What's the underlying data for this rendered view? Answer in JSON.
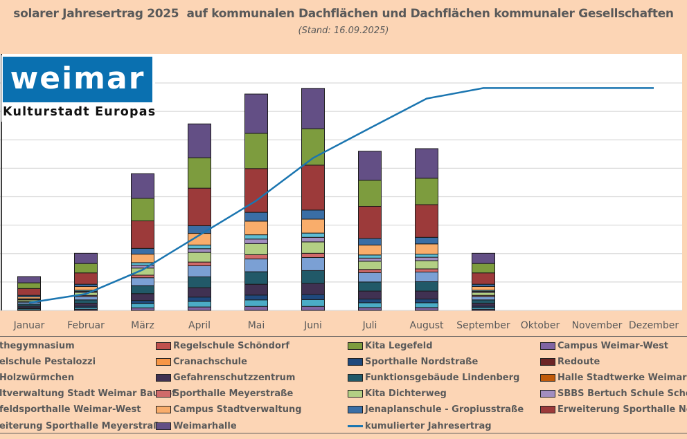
{
  "chart_data": {
    "type": "bar",
    "stacked": true,
    "title": "solarer Jahresertrag 2025  auf kommunalen Dachflächen und Dachflächen kommunaler Gesellschaften",
    "subtitle": "(Stand: 16.09.2025)",
    "categories": [
      "Januar",
      "Februar",
      "März",
      "April",
      "Mai",
      "Juni",
      "Juli",
      "August",
      "September",
      "Oktober",
      "November",
      "Dezember"
    ],
    "ylim": [
      0,
      8
    ],
    "grid": true,
    "legend_position": "bottom",
    "series": [
      {
        "name": "Campus Weimar-West",
        "legend_text": "Campus Weimar-West",
        "color": "#8064a2",
        "values": [
          0.02,
          0.04,
          0.09,
          0.12,
          0.14,
          0.14,
          0.1,
          0.1,
          0.04,
          0,
          0,
          0
        ]
      },
      {
        "name": "Holzwürmchen",
        "legend_text": "Holzwürmchen",
        "color": "#4bacc6",
        "values": [
          0.04,
          0.06,
          0.15,
          0.2,
          0.23,
          0.24,
          0.17,
          0.17,
          0.06,
          0,
          0,
          0
        ]
      },
      {
        "name": "Sporthalle Nordstraße",
        "legend_text": "Sporthalle Nordstraße",
        "color": "#1f497d",
        "values": [
          0.03,
          0.05,
          0.11,
          0.15,
          0.17,
          0.18,
          0.13,
          0.13,
          0.05,
          0,
          0,
          0
        ]
      },
      {
        "name": "Gefahrenschutzzentrum",
        "legend_text": "Gefahrenschutzzentrum",
        "color": "#403152",
        "values": [
          0.06,
          0.1,
          0.24,
          0.33,
          0.38,
          0.39,
          0.28,
          0.28,
          0.1,
          0,
          0,
          0
        ]
      },
      {
        "name": "Funktionsgebäude Lindenberg",
        "legend_text": "Funktionsgebäude Lindenberg",
        "color": "#215968",
        "values": [
          0.07,
          0.12,
          0.28,
          0.38,
          0.44,
          0.45,
          0.32,
          0.33,
          0.12,
          0,
          0,
          0
        ]
      },
      {
        "name": "Regelschule Pestalozzi",
        "legend_text": "elschule Pestalozzi",
        "color": "#7ba0d4",
        "values": [
          0.07,
          0.12,
          0.28,
          0.39,
          0.45,
          0.46,
          0.33,
          0.34,
          0.12,
          0,
          0,
          0
        ]
      },
      {
        "name": "Sporthalle Meyerstraße",
        "legend_text": "Sporthalle Meyerstraße",
        "color": "#d06a6a",
        "values": [
          0.02,
          0.04,
          0.09,
          0.13,
          0.15,
          0.15,
          0.11,
          0.11,
          0.04,
          0,
          0,
          0
        ]
      },
      {
        "name": "Kita Dichterweg",
        "legend_text": "Kita Dichterweg",
        "color": "#b3cf84",
        "values": [
          0.06,
          0.1,
          0.25,
          0.34,
          0.39,
          0.4,
          0.29,
          0.29,
          0.1,
          0,
          0,
          0
        ]
      },
      {
        "name": "SBBS Bertuch Schule Schöndorf",
        "legend_text": "SBBS Bertuch Schule Schöndo",
        "color": "#a28ec0",
        "values": [
          0.02,
          0.04,
          0.1,
          0.13,
          0.16,
          0.16,
          0.11,
          0.12,
          0.04,
          0,
          0,
          0
        ]
      },
      {
        "name": "Goethegymnasium",
        "legend_text": "thegymnasium",
        "color": "#5fbcd3",
        "values": [
          0.02,
          0.04,
          0.09,
          0.13,
          0.15,
          0.15,
          0.11,
          0.11,
          0.04,
          0,
          0,
          0
        ]
      },
      {
        "name": "Campus Stadtverwaltung",
        "legend_text": "Campus Stadtverwaltung",
        "color": "#f9ad6b",
        "values": [
          0.07,
          0.13,
          0.3,
          0.41,
          0.48,
          0.49,
          0.35,
          0.36,
          0.13,
          0,
          0,
          0
        ]
      },
      {
        "name": "Jenaplanschule - Gropiusstraße",
        "legend_text": "Jenaplanschule - Gropiusstraße",
        "color": "#3a6ea5",
        "values": [
          0.05,
          0.08,
          0.2,
          0.27,
          0.31,
          0.32,
          0.23,
          0.23,
          0.08,
          0,
          0,
          0
        ]
      },
      {
        "name": "Erweiterung Sporthalle Nordstraße",
        "legend_text": "Erweiterung Sporthalle Nords",
        "color": "#9c3a3a",
        "values": [
          0.24,
          0.4,
          0.97,
          1.32,
          1.54,
          1.58,
          1.13,
          1.15,
          0.4,
          0,
          0,
          0
        ]
      },
      {
        "name": "Kita Legefeld",
        "legend_text": "Kita Legefeld",
        "color": "#7d9c3e",
        "values": [
          0.2,
          0.33,
          0.79,
          1.07,
          1.24,
          1.28,
          0.92,
          0.93,
          0.33,
          0,
          0,
          0
        ]
      },
      {
        "name": "Weimarhalle",
        "legend_text": "Weimarhalle",
        "color": "#634f85",
        "values": [
          0.22,
          0.36,
          0.87,
          1.19,
          1.38,
          1.42,
          1.02,
          1.04,
          0.36,
          0,
          0,
          0
        ]
      },
      {
        "name": "Regelschule Schöndorf",
        "legend_text": "Regelschule Schöndorf",
        "color": "#c0504d",
        "values": [
          0,
          0,
          0,
          0,
          0,
          0,
          0,
          0,
          0,
          0,
          0,
          0
        ]
      },
      {
        "name": "Cranachschule",
        "legend_text": "Cranachschule",
        "color": "#f79646",
        "values": [
          0,
          0,
          0,
          0,
          0,
          0,
          0,
          0,
          0,
          0,
          0,
          0
        ]
      },
      {
        "name": "Redoute",
        "legend_text": "Redoute",
        "color": "#6b2426",
        "values": [
          0,
          0,
          0,
          0,
          0,
          0,
          0,
          0,
          0,
          0,
          0,
          0
        ]
      },
      {
        "name": "Halle Stadtwerke Weimar",
        "legend_text": "Halle Stadtwerke Weimar",
        "color": "#c05a0a",
        "values": [
          0,
          0,
          0,
          0,
          0,
          0,
          0,
          0,
          0,
          0,
          0,
          0
        ]
      },
      {
        "name": "Stadtverwaltung Stadt Weimar Bauhof",
        "legend_text": "ltverwaltung Stadt Weimar Bauhof",
        "color": "#4f6228",
        "values": [
          0,
          0,
          0,
          0,
          0,
          0,
          0,
          0,
          0,
          0,
          0,
          0
        ]
      },
      {
        "name": "Mehrfeldsporthalle Weimar-West",
        "legend_text": "feldsporthalle Weimar-West",
        "color": "#31859c",
        "values": [
          0,
          0,
          0,
          0,
          0,
          0,
          0,
          0,
          0,
          0,
          0,
          0
        ]
      },
      {
        "name": "Erweiterung Sporthalle Meyerstraße",
        "legend_text": "eiterung Sporthalle Meyerstraße",
        "color": "#953735",
        "values": [
          0,
          0,
          0,
          0,
          0,
          0,
          0,
          0,
          0,
          0,
          0,
          0
        ]
      }
    ],
    "line": {
      "name": "kumulierter Jahresertrag",
      "legend_text": "kumulierter Jahresertrag",
      "color": "#1a75b0",
      "values": [
        0.27,
        0.58,
        1.43,
        2.65,
        3.86,
        5.36,
        6.41,
        7.45,
        7.82,
        7.82,
        7.82,
        7.82
      ]
    }
  },
  "logo": {
    "word": "weimar",
    "tagline": "Kulturstadt Europas"
  }
}
